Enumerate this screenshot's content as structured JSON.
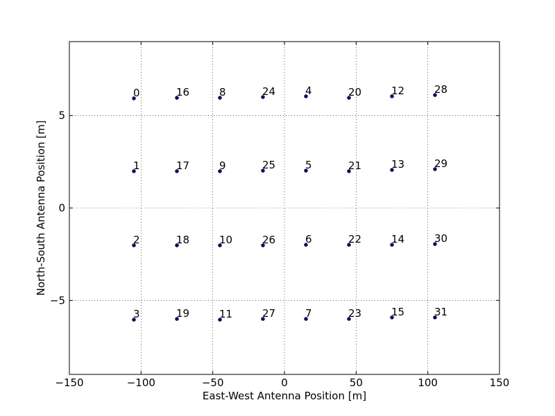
{
  "chart_data": {
    "type": "scatter",
    "x_label": "East-West Antenna Position [m]",
    "y_label": "North-South Antenna Position [m]",
    "x": [
      -105,
      -105,
      -105,
      -105,
      15,
      15,
      15,
      15,
      -45,
      -45,
      -45,
      -45,
      75,
      75,
      75,
      75,
      -75,
      -75,
      -75,
      -75,
      45,
      45,
      45,
      45,
      -15,
      -15,
      -15,
      -15,
      105,
      105,
      105,
      105
    ],
    "y": [
      5.93,
      1.99,
      -2.02,
      -6.04,
      6.04,
      2.02,
      -1.99,
      -6.0,
      5.96,
      1.99,
      -2.02,
      -6.04,
      6.04,
      2.06,
      -1.99,
      -5.92,
      5.96,
      1.99,
      -2.02,
      -6.0,
      5.96,
      1.99,
      -1.99,
      -6.0,
      6.0,
      2.02,
      -2.02,
      -6.0,
      6.11,
      2.1,
      -1.95,
      -5.92
    ],
    "point_labels": [
      "0",
      "1",
      "2",
      "3",
      "4",
      "5",
      "6",
      "7",
      "8",
      "9",
      "10",
      "11",
      "12",
      "13",
      "14",
      "15",
      "16",
      "17",
      "18",
      "19",
      "20",
      "21",
      "22",
      "23",
      "24",
      "25",
      "26",
      "27",
      "28",
      "29",
      "30",
      "31"
    ],
    "color": "#000080",
    "xlim": [
      -150,
      150
    ],
    "ylim": [
      -9,
      9
    ],
    "xticks": [
      {
        "value": -150,
        "label": "−150"
      },
      {
        "value": -100,
        "label": "−100"
      },
      {
        "value": -50,
        "label": "−50"
      },
      0,
      50,
      100,
      150
    ],
    "yticks": [
      {
        "value": -5,
        "label": "−5"
      },
      0,
      5
    ],
    "grid": true
  }
}
